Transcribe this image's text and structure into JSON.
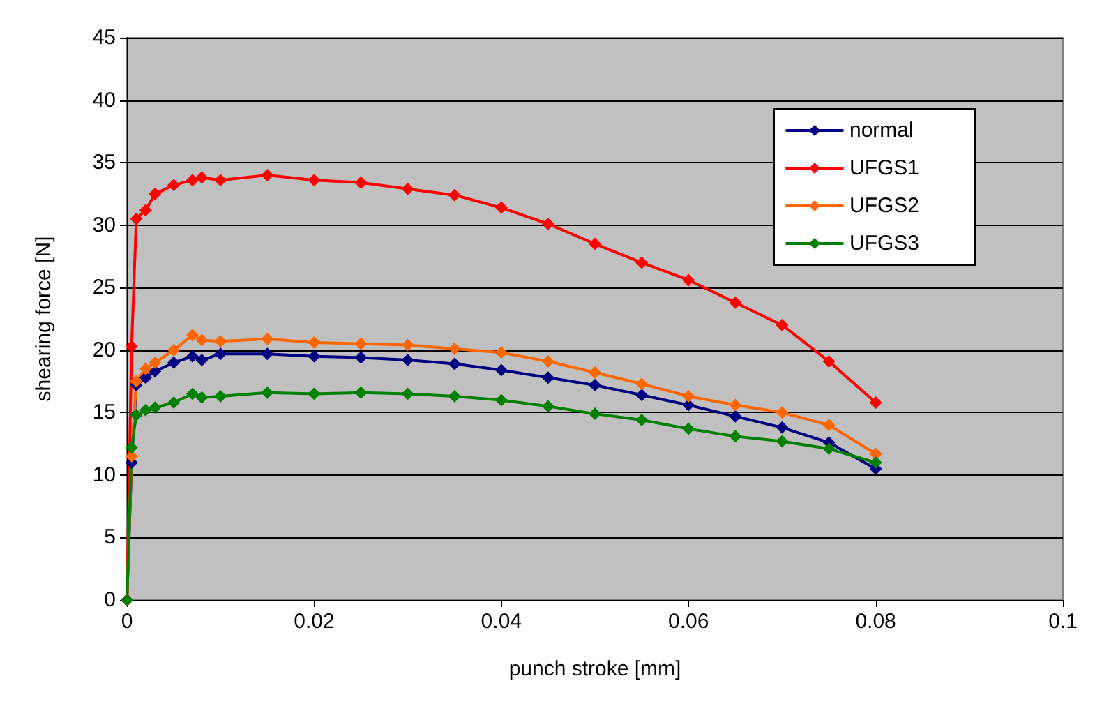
{
  "chart_data": {
    "type": "line",
    "xlabel": "punch stroke [mm]",
    "ylabel": "shearing force [N]",
    "x": [
      0,
      0.0005,
      0.001,
      0.002,
      0.003,
      0.005,
      0.007,
      0.008,
      0.01,
      0.015,
      0.02,
      0.025,
      0.03,
      0.035,
      0.04,
      0.045,
      0.05,
      0.055,
      0.06,
      0.065,
      0.07,
      0.075,
      0.08
    ],
    "series": [
      {
        "name": "normal",
        "color": "#000080",
        "values": [
          0,
          11,
          17.2,
          17.8,
          18.3,
          19,
          19.5,
          19.2,
          19.7,
          19.7,
          19.5,
          19.4,
          19.2,
          18.9,
          18.4,
          17.8,
          17.2,
          16.4,
          15.6,
          14.7,
          13.8,
          12.6,
          10.5
        ]
      },
      {
        "name": "UFGS1",
        "color": "#ff0000",
        "values": [
          0,
          20.3,
          30.5,
          31.2,
          32.5,
          33.2,
          33.6,
          33.8,
          33.6,
          34,
          33.6,
          33.4,
          32.9,
          32.4,
          31.4,
          30.1,
          28.5,
          27,
          25.6,
          23.8,
          22,
          19.1,
          15.8
        ]
      },
      {
        "name": "UFGS2",
        "color": "#ff6600",
        "values": [
          0,
          11.5,
          17.5,
          18.5,
          19,
          20,
          21.2,
          20.8,
          20.7,
          20.9,
          20.6,
          20.5,
          20.4,
          20.1,
          19.8,
          19.1,
          18.2,
          17.3,
          16.3,
          15.6,
          15,
          14,
          11.7
        ]
      },
      {
        "name": "UFGS3",
        "color": "#008000",
        "values": [
          0,
          12.2,
          14.8,
          15.2,
          15.4,
          15.8,
          16.5,
          16.2,
          16.3,
          16.6,
          16.5,
          16.6,
          16.5,
          16.3,
          16,
          15.5,
          14.9,
          14.4,
          13.7,
          13.1,
          12.7,
          12.1,
          11
        ]
      }
    ],
    "xlim": [
      0,
      0.1
    ],
    "xticks": [
      0,
      0.02,
      0.04,
      0.06,
      0.08,
      0.1
    ],
    "ylim": [
      0,
      45
    ],
    "yticks": [
      0,
      5,
      10,
      15,
      20,
      25,
      30,
      35,
      40,
      45
    ],
    "grid": "y",
    "legend": "top right",
    "marker": "diamond",
    "line_style": "solid"
  }
}
